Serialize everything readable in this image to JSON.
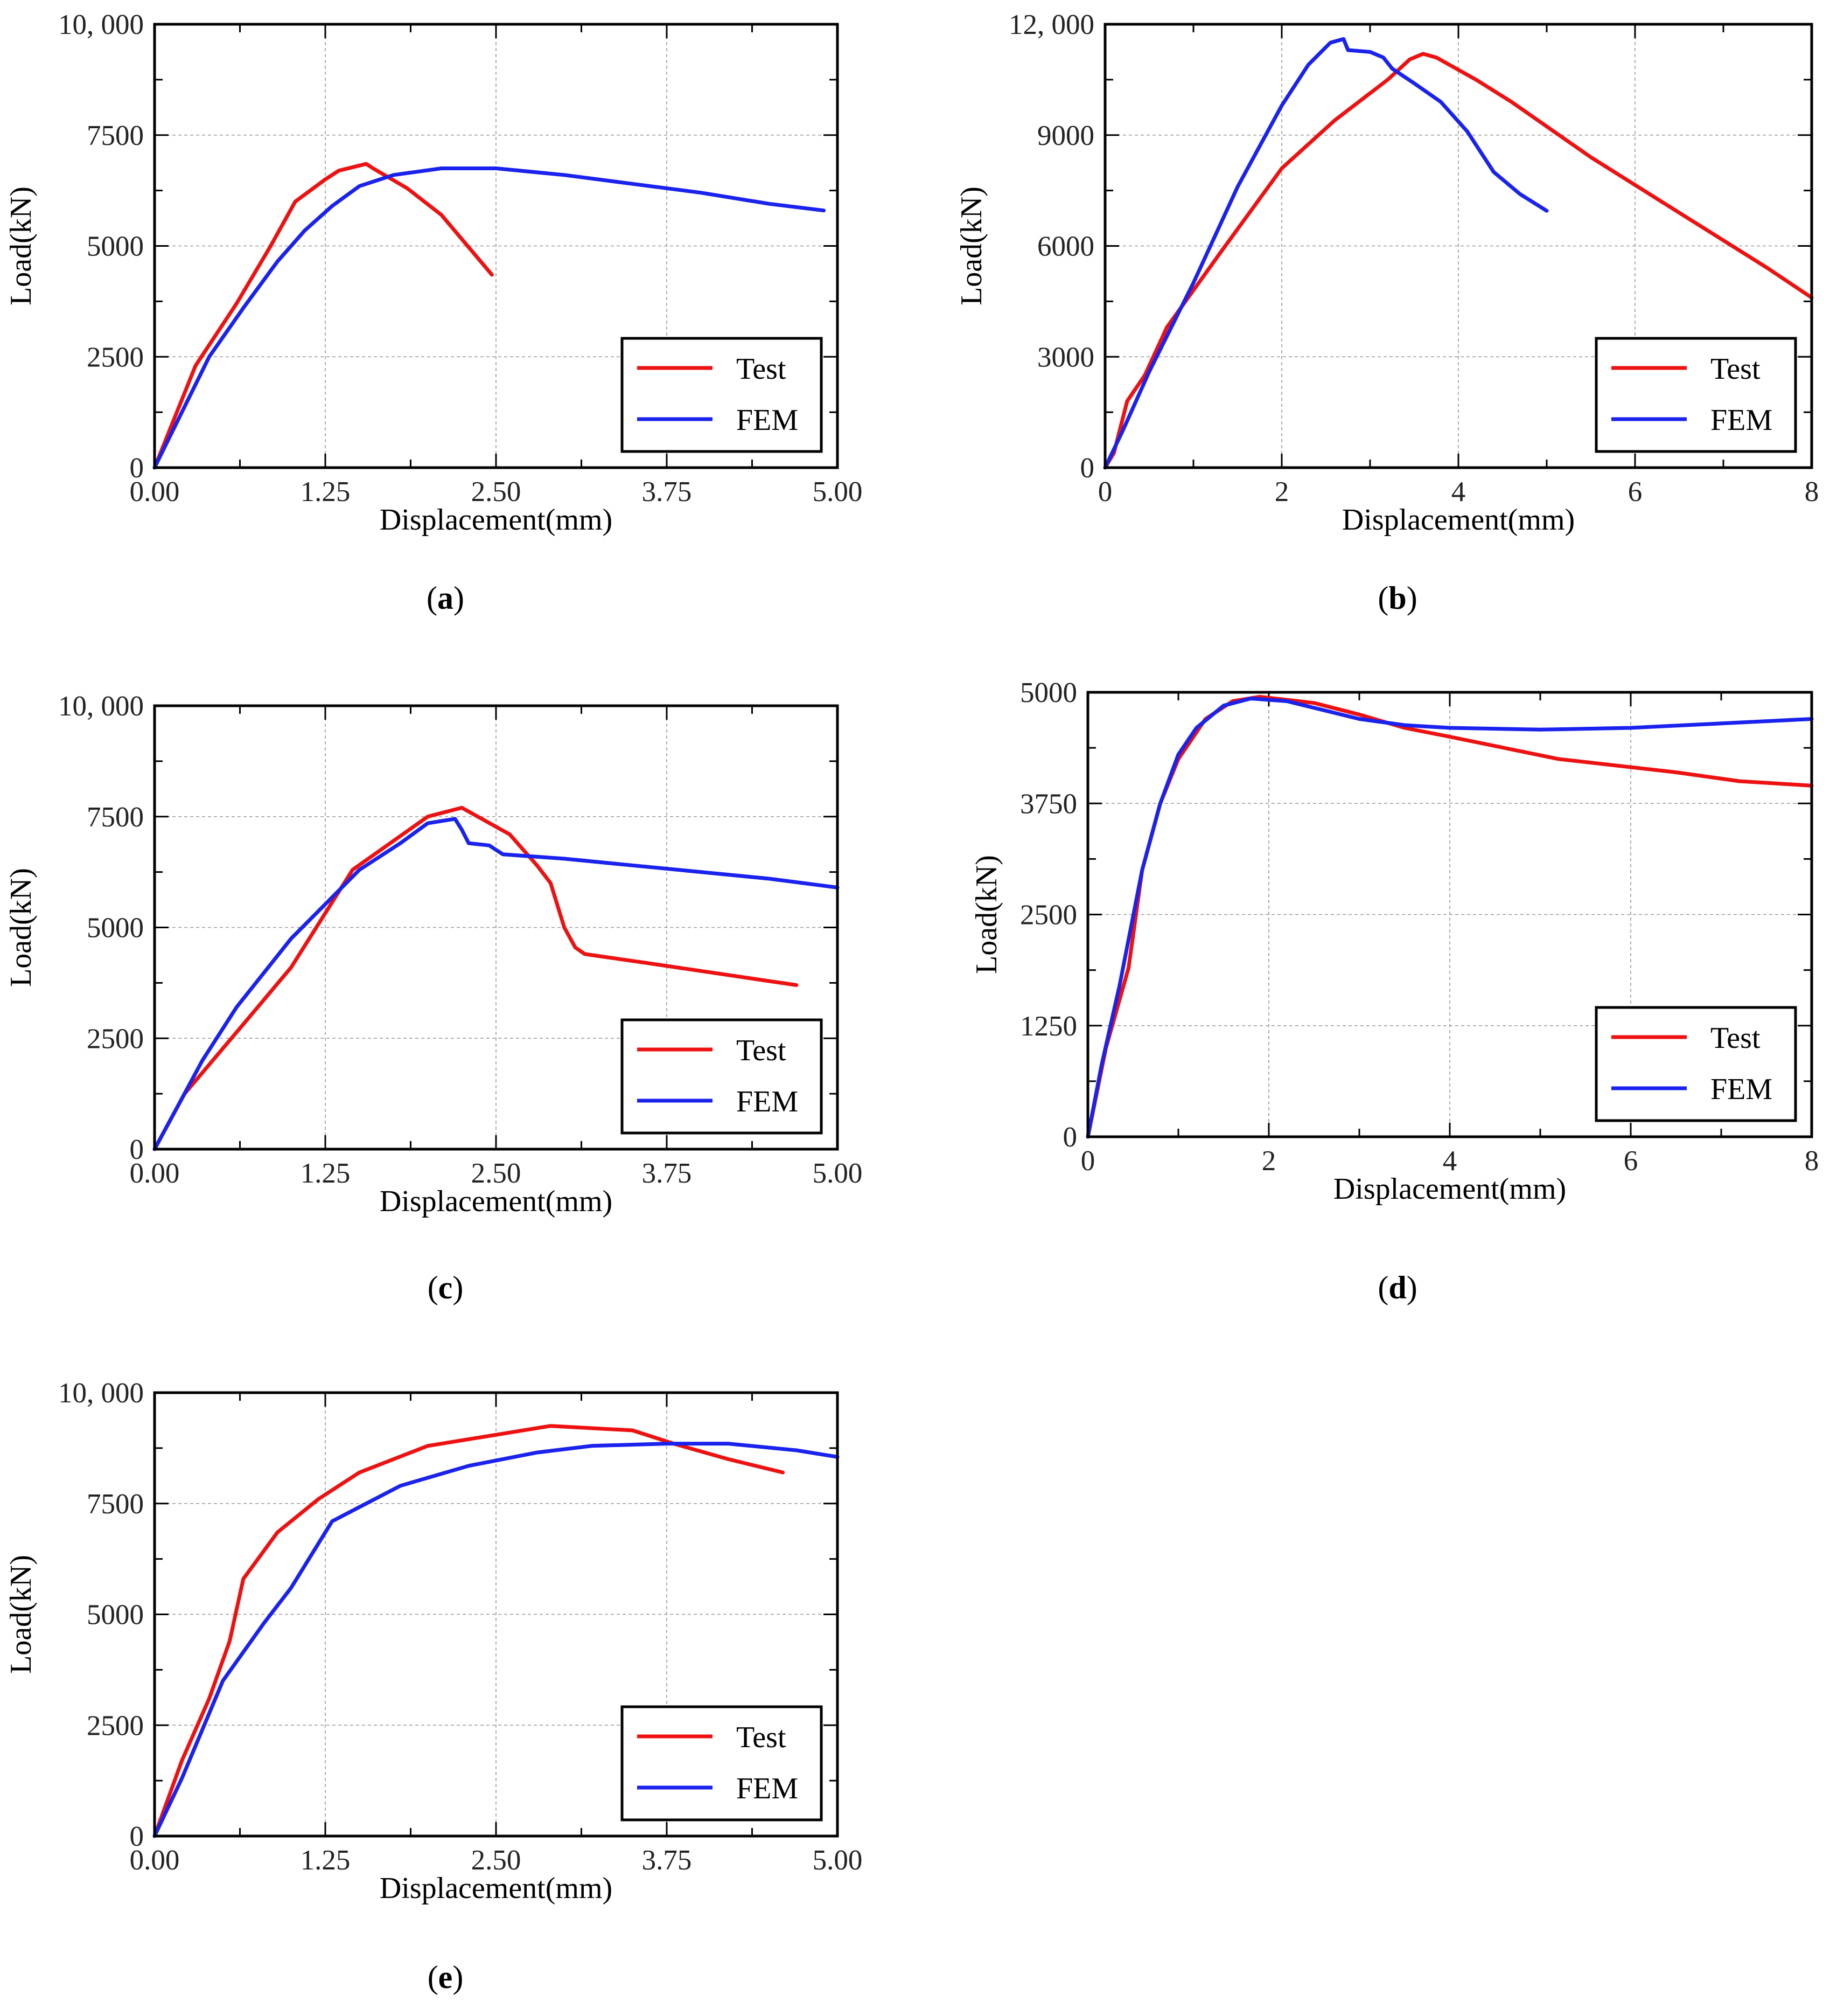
{
  "colors": {
    "test": "#ee1111",
    "fem": "#1a22ee",
    "grid": "#999999",
    "axis": "#000000"
  },
  "legend": {
    "placement": "bottom-right"
  },
  "chart_data": [
    {
      "id": "a",
      "panel_label": "a",
      "type": "line",
      "xlabel": "Displacement(mm)",
      "ylabel": "Load(kN)",
      "xlim": [
        0,
        5
      ],
      "ylim": [
        0,
        10000
      ],
      "xticks": [
        0,
        1.25,
        2.5,
        3.75,
        5
      ],
      "xtick_labels": [
        "0.00",
        "1.25",
        "2.50",
        "3.75",
        "5.00"
      ],
      "yticks": [
        0,
        2500,
        5000,
        7500,
        10000
      ],
      "ytick_labels": [
        "0",
        "2500",
        "5000",
        "7500",
        "10, 000"
      ],
      "grid": true,
      "series": [
        {
          "name": "Test",
          "color_key": "test",
          "points": [
            [
              0,
              0
            ],
            [
              0.3,
              2300
            ],
            [
              0.6,
              3700
            ],
            [
              0.85,
              5000
            ],
            [
              1.03,
              6000
            ],
            [
              1.25,
              6500
            ],
            [
              1.35,
              6700
            ],
            [
              1.55,
              6850
            ],
            [
              1.6,
              6750
            ],
            [
              1.85,
              6300
            ],
            [
              2.1,
              5700
            ],
            [
              2.47,
              4350
            ]
          ]
        },
        {
          "name": "FEM",
          "color_key": "fem",
          "points": [
            [
              0,
              0
            ],
            [
              0.4,
              2500
            ],
            [
              0.65,
              3600
            ],
            [
              0.9,
              4650
            ],
            [
              1.1,
              5350
            ],
            [
              1.3,
              5900
            ],
            [
              1.5,
              6350
            ],
            [
              1.75,
              6600
            ],
            [
              2.1,
              6750
            ],
            [
              2.5,
              6750
            ],
            [
              3.0,
              6600
            ],
            [
              3.5,
              6400
            ],
            [
              4.0,
              6200
            ],
            [
              4.5,
              5950
            ],
            [
              4.9,
              5800
            ]
          ]
        }
      ]
    },
    {
      "id": "b",
      "panel_label": "b",
      "type": "line",
      "xlabel": "Displacement(mm)",
      "ylabel": "Load(kN)",
      "xlim": [
        0,
        8
      ],
      "ylim": [
        0,
        12000
      ],
      "xticks": [
        0,
        2,
        4,
        6,
        8
      ],
      "xtick_labels": [
        "0",
        "2",
        "4",
        "6",
        "8"
      ],
      "yticks": [
        0,
        3000,
        6000,
        9000,
        12000
      ],
      "ytick_labels": [
        "0",
        "3000",
        "6000",
        "9000",
        "12, 000"
      ],
      "grid": true,
      "series": [
        {
          "name": "Test",
          "color_key": "test",
          "points": [
            [
              0,
              0
            ],
            [
              0.1,
              400
            ],
            [
              0.25,
              1800
            ],
            [
              0.45,
              2500
            ],
            [
              0.7,
              3800
            ],
            [
              1.3,
              5800
            ],
            [
              2.0,
              8100
            ],
            [
              2.6,
              9400
            ],
            [
              3.2,
              10500
            ],
            [
              3.45,
              11050
            ],
            [
              3.6,
              11200
            ],
            [
              3.75,
              11100
            ],
            [
              4.2,
              10500
            ],
            [
              4.6,
              9900
            ],
            [
              5.5,
              8400
            ],
            [
              6.5,
              6900
            ],
            [
              7.5,
              5400
            ],
            [
              8.0,
              4600
            ]
          ]
        },
        {
          "name": "FEM",
          "color_key": "fem",
          "points": [
            [
              0,
              0
            ],
            [
              0.2,
              1000
            ],
            [
              0.5,
              2600
            ],
            [
              1.0,
              5000
            ],
            [
              1.5,
              7600
            ],
            [
              2.0,
              9800
            ],
            [
              2.3,
              10900
            ],
            [
              2.55,
              11500
            ],
            [
              2.7,
              11600
            ],
            [
              2.75,
              11300
            ],
            [
              3.0,
              11250
            ],
            [
              3.15,
              11100
            ],
            [
              3.25,
              10800
            ],
            [
              3.5,
              10400
            ],
            [
              3.8,
              9900
            ],
            [
              4.1,
              9100
            ],
            [
              4.4,
              8000
            ],
            [
              4.7,
              7400
            ],
            [
              5.0,
              6950
            ]
          ]
        }
      ]
    },
    {
      "id": "c",
      "panel_label": "c",
      "type": "line",
      "xlabel": "Displacement(mm)",
      "ylabel": "Load(kN)",
      "xlim": [
        0,
        5
      ],
      "ylim": [
        0,
        10000
      ],
      "xticks": [
        0,
        1.25,
        2.5,
        3.75,
        5
      ],
      "xtick_labels": [
        "0.00",
        "1.25",
        "2.50",
        "3.75",
        "5.00"
      ],
      "yticks": [
        0,
        2500,
        5000,
        7500,
        10000
      ],
      "ytick_labels": [
        "0",
        "2500",
        "5000",
        "7500",
        "10, 000"
      ],
      "grid": true,
      "series": [
        {
          "name": "Test",
          "color_key": "test",
          "points": [
            [
              0,
              0
            ],
            [
              0.22,
              1250
            ],
            [
              0.7,
              3000
            ],
            [
              1.0,
              4100
            ],
            [
              1.45,
              6300
            ],
            [
              2.0,
              7500
            ],
            [
              2.25,
              7700
            ],
            [
              2.6,
              7100
            ],
            [
              2.8,
              6400
            ],
            [
              2.9,
              6000
            ],
            [
              3.0,
              5000
            ],
            [
              3.08,
              4550
            ],
            [
              3.15,
              4400
            ],
            [
              3.6,
              4200
            ],
            [
              4.7,
              3700
            ]
          ]
        },
        {
          "name": "FEM",
          "color_key": "fem",
          "points": [
            [
              0,
              0
            ],
            [
              0.35,
              2000
            ],
            [
              0.6,
              3200
            ],
            [
              1.0,
              4750
            ],
            [
              1.5,
              6300
            ],
            [
              1.8,
              6900
            ],
            [
              2.0,
              7350
            ],
            [
              2.2,
              7450
            ],
            [
              2.25,
              7200
            ],
            [
              2.3,
              6900
            ],
            [
              2.45,
              6850
            ],
            [
              2.55,
              6650
            ],
            [
              3.0,
              6550
            ],
            [
              3.5,
              6400
            ],
            [
              4.0,
              6250
            ],
            [
              4.5,
              6100
            ],
            [
              5.0,
              5900
            ]
          ]
        }
      ]
    },
    {
      "id": "d",
      "panel_label": "d",
      "type": "line",
      "xlabel": "Displacement(mm)",
      "ylabel": "Load(kN)",
      "xlim": [
        0,
        8
      ],
      "ylim": [
        0,
        5000
      ],
      "xticks": [
        0,
        2,
        4,
        6,
        8
      ],
      "xtick_labels": [
        "0",
        "2",
        "4",
        "6",
        "8"
      ],
      "yticks": [
        0,
        1250,
        2500,
        3750,
        5000
      ],
      "ytick_labels": [
        "0",
        "1250",
        "2500",
        "3750",
        "5000"
      ],
      "grid": true,
      "series": [
        {
          "name": "Test",
          "color_key": "test",
          "points": [
            [
              0,
              0
            ],
            [
              0.2,
              1000
            ],
            [
              0.45,
              1900
            ],
            [
              0.6,
              3000
            ],
            [
              0.8,
              3750
            ],
            [
              1.0,
              4250
            ],
            [
              1.3,
              4700
            ],
            [
              1.6,
              4900
            ],
            [
              1.9,
              4950
            ],
            [
              2.5,
              4880
            ],
            [
              3.0,
              4750
            ],
            [
              3.5,
              4600
            ],
            [
              4.0,
              4500
            ],
            [
              5.2,
              4250
            ],
            [
              6.5,
              4100
            ],
            [
              7.2,
              4000
            ],
            [
              8.0,
              3950
            ]
          ]
        },
        {
          "name": "FEM",
          "color_key": "fem",
          "points": [
            [
              0,
              0
            ],
            [
              0.15,
              800
            ],
            [
              0.35,
              1700
            ],
            [
              0.6,
              3000
            ],
            [
              0.8,
              3750
            ],
            [
              1.0,
              4300
            ],
            [
              1.2,
              4600
            ],
            [
              1.5,
              4850
            ],
            [
              1.8,
              4930
            ],
            [
              2.2,
              4900
            ],
            [
              2.6,
              4800
            ],
            [
              3.0,
              4700
            ],
            [
              3.5,
              4630
            ],
            [
              4.0,
              4600
            ],
            [
              5.0,
              4580
            ],
            [
              6.0,
              4600
            ],
            [
              7.0,
              4650
            ],
            [
              8.0,
              4700
            ]
          ]
        }
      ]
    },
    {
      "id": "e",
      "panel_label": "e",
      "type": "line",
      "xlabel": "Displacement(mm)",
      "ylabel": "Load(kN)",
      "xlim": [
        0,
        5
      ],
      "ylim": [
        0,
        10000
      ],
      "xticks": [
        0,
        1.25,
        2.5,
        3.75,
        5
      ],
      "xtick_labels": [
        "0.00",
        "1.25",
        "2.50",
        "3.75",
        "5.00"
      ],
      "yticks": [
        0,
        2500,
        5000,
        7500,
        10000
      ],
      "ytick_labels": [
        "0",
        "2500",
        "5000",
        "7500",
        "10, 000"
      ],
      "grid": true,
      "series": [
        {
          "name": "Test",
          "color_key": "test",
          "points": [
            [
              0,
              0
            ],
            [
              0.2,
              1700
            ],
            [
              0.4,
              3100
            ],
            [
              0.55,
              4400
            ],
            [
              0.65,
              5800
            ],
            [
              0.9,
              6850
            ],
            [
              1.2,
              7600
            ],
            [
              1.5,
              8200
            ],
            [
              2.0,
              8800
            ],
            [
              2.5,
              9050
            ],
            [
              2.9,
              9250
            ],
            [
              3.5,
              9150
            ],
            [
              3.8,
              8850
            ],
            [
              4.2,
              8500
            ],
            [
              4.6,
              8200
            ]
          ]
        },
        {
          "name": "FEM",
          "color_key": "fem",
          "points": [
            [
              0,
              0
            ],
            [
              0.2,
              1300
            ],
            [
              0.5,
              3500
            ],
            [
              0.8,
              4800
            ],
            [
              1.0,
              5600
            ],
            [
              1.3,
              7100
            ],
            [
              1.8,
              7900
            ],
            [
              2.3,
              8350
            ],
            [
              2.8,
              8650
            ],
            [
              3.2,
              8800
            ],
            [
              3.75,
              8850
            ],
            [
              4.2,
              8850
            ],
            [
              4.7,
              8700
            ],
            [
              5.0,
              8550
            ]
          ]
        }
      ]
    }
  ]
}
